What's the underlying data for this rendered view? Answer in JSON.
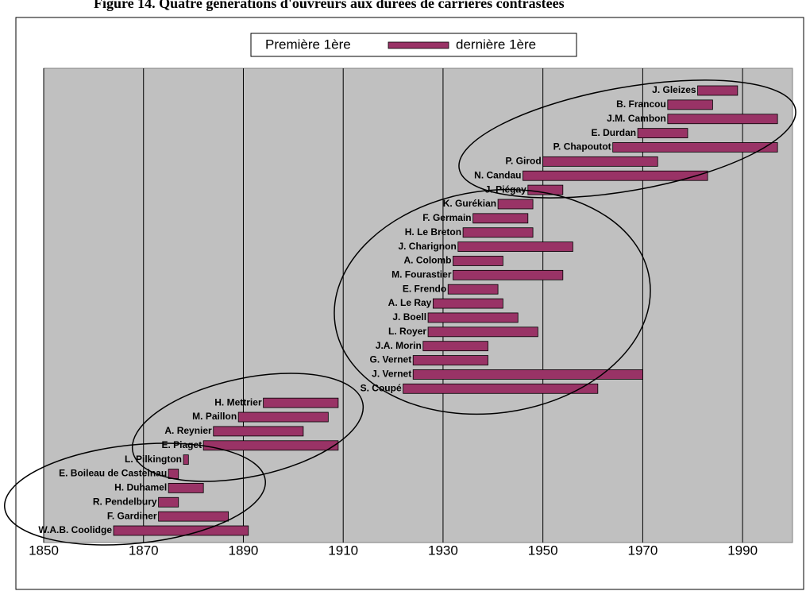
{
  "chart_data": {
    "type": "floating-bar",
    "title": "Figure 14. Quatre générations d'ouvreurs aux durées de carrières contrastées",
    "categories": [
      "J. Gleizes",
      "B. Francou",
      "J.M. Cambon",
      "E. Durdan",
      "P. Chapoutot",
      "P. Girod",
      "N. Candau",
      "J. Piégay",
      "K. Gurékian",
      "F. Germain",
      "H. Le Breton",
      "J. Charignon",
      "A. Colomb",
      "M. Fourastier",
      "E. Frendo",
      "A. Le Ray",
      "J. Boell",
      "L. Royer",
      "J.A. Morin",
      "G. Vernet",
      "J. Vernet",
      "S. Coupé",
      "H. Mettrier",
      "M. Paillon",
      "A. Reynier",
      "E. Piaget",
      "L. Pilkington",
      "E. Boileau de Castelnau",
      "H. Duhamel",
      "R. Pendelbury",
      "F. Gardiner",
      "W.A.B. Coolidge"
    ],
    "series": [
      {
        "name": "Première 1ère",
        "color": "none",
        "values": [
          1981,
          1975,
          1975,
          1969,
          1964,
          1950,
          1946,
          1947,
          1941,
          1936,
          1934,
          1933,
          1932,
          1932,
          1931,
          1928,
          1927,
          1927,
          1926,
          1924,
          1924,
          1922,
          1894,
          1889,
          1884,
          1882,
          1878,
          1875,
          1875,
          1873,
          1873,
          1864
        ]
      },
      {
        "name": "dernière 1ère",
        "color": "#993366",
        "values": [
          1989,
          1984,
          1997,
          1979,
          1997,
          1973,
          1983,
          1954,
          1948,
          1947,
          1948,
          1956,
          1942,
          1954,
          1941,
          1942,
          1945,
          1949,
          1939,
          1939,
          1970,
          1961,
          1909,
          1907,
          1902,
          1909,
          1879,
          1877,
          1882,
          1877,
          1887,
          1891
        ]
      }
    ],
    "xlim": [
      1850,
      2000
    ],
    "xticks": [
      1850,
      1870,
      1890,
      1910,
      1930,
      1950,
      1970,
      1990
    ],
    "grid": true,
    "legend": "top"
  }
}
